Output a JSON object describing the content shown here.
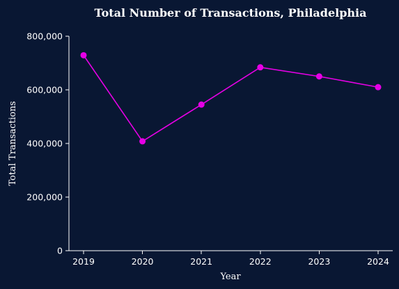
{
  "chart_data": {
    "type": "line",
    "title": "Total Number of Transactions, Philadelphia",
    "xlabel": "Year",
    "ylabel": "Total Transactions",
    "x": [
      "2019",
      "2020",
      "2021",
      "2022",
      "2023",
      "2024"
    ],
    "series": [
      {
        "values": [
          729000,
          408000,
          545000,
          684000,
          650000,
          610000
        ],
        "color": "#e600e6"
      }
    ],
    "ylim": [
      0,
      800000
    ],
    "yticks": [
      0,
      200000,
      400000,
      600000,
      800000
    ],
    "ytick_labels": [
      "0",
      "200,000",
      "400,000",
      "600,000",
      "800,000"
    ],
    "grid": false,
    "legend": "none",
    "colors": {
      "background": "#091733",
      "text": "#ffffff",
      "line": "#e600e6"
    }
  }
}
